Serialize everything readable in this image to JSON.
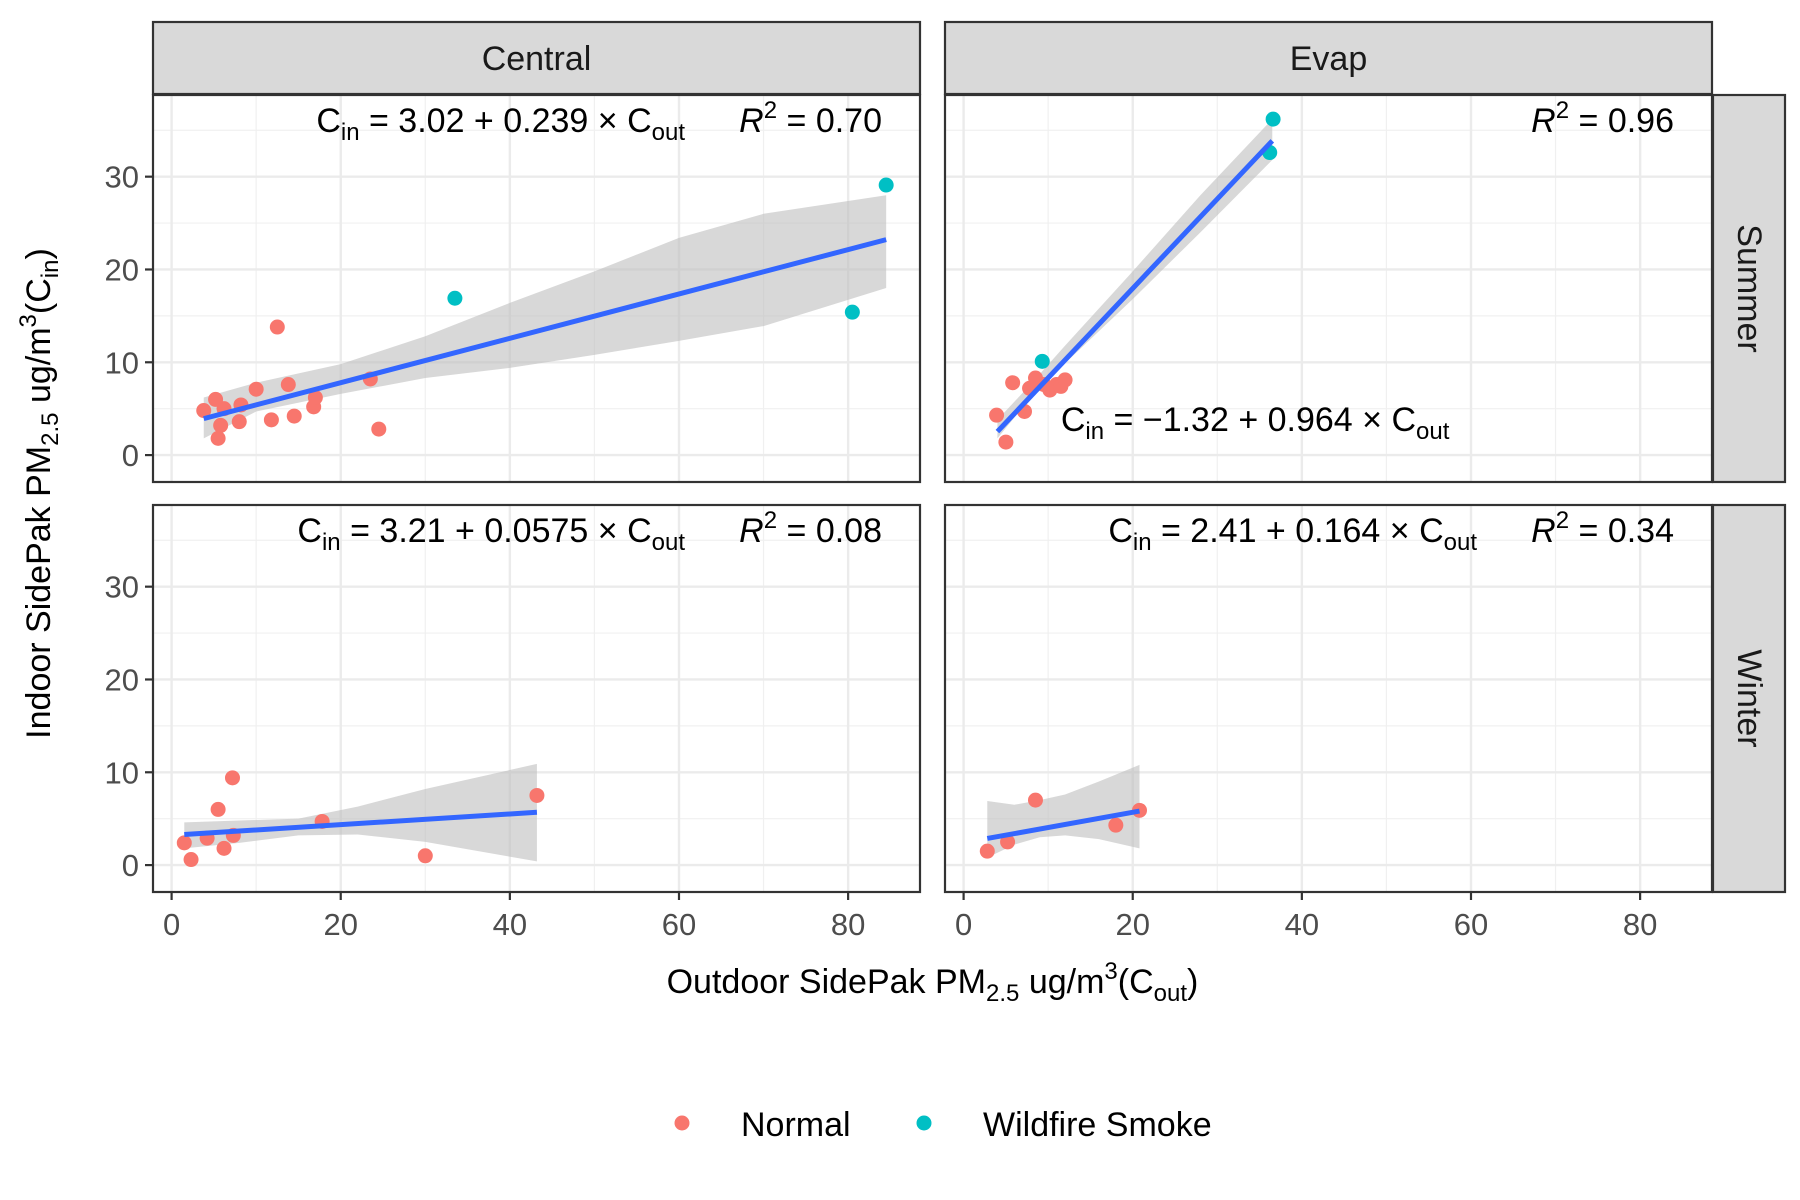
{
  "chart_data": {
    "type": "scatter",
    "x_title": {
      "prefix": "Outdoor SidePak PM",
      "sub": "2.5",
      "mid": " ug/m",
      "sup": "3",
      "open": "(C",
      "sub2": "out",
      "close": ")"
    },
    "y_title": {
      "prefix": "Indoor SidePak PM",
      "sub": "2.5",
      "mid": " ug/m",
      "sup": "3",
      "open": "(C",
      "sub2": "in",
      "close": ")"
    },
    "xlim": [
      -2.2,
      88.5
    ],
    "ylim": [
      -2.9,
      38.8
    ],
    "x_ticks": [
      0,
      20,
      40,
      60,
      80
    ],
    "y_ticks": [
      0,
      10,
      20,
      30
    ],
    "column_strips": [
      "Central",
      "Evap"
    ],
    "row_strips": [
      "Summer",
      "Winter"
    ],
    "grid": true,
    "legend": {
      "position": "bottom",
      "entries": [
        {
          "label": "Normal",
          "color": "#F8766D"
        },
        {
          "label": "Wildfire Smoke",
          "color": "#00BFC4"
        }
      ]
    },
    "fit_color": "#3366FF",
    "band_color": "#BEBEBE",
    "panels": [
      {
        "row": "Summer",
        "col": "Central",
        "fit": {
          "intercept": 3.02,
          "slope": 0.239,
          "x_range": [
            3.8,
            84.5
          ]
        },
        "band": [
          [
            3.8,
            1.8,
            6.2
          ],
          [
            10,
            4.7,
            7.8
          ],
          [
            20,
            6.6,
            9.8
          ],
          [
            30,
            8.3,
            12.8
          ],
          [
            40,
            9.4,
            16.4
          ],
          [
            50,
            10.8,
            19.8
          ],
          [
            60,
            12.3,
            23.4
          ],
          [
            70,
            13.9,
            26.0
          ],
          [
            84.5,
            18.0,
            28.0
          ]
        ],
        "equation": {
          "intercept": "3.02",
          "slope": "0.239",
          "r2": "0.70",
          "position": "top"
        },
        "points": [
          {
            "x": 3.8,
            "y": 4.8,
            "group": "Normal"
          },
          {
            "x": 5.2,
            "y": 6.0,
            "group": "Normal"
          },
          {
            "x": 5.5,
            "y": 1.8,
            "group": "Normal"
          },
          {
            "x": 5.8,
            "y": 3.2,
            "group": "Normal"
          },
          {
            "x": 6.2,
            "y": 5.0,
            "group": "Normal"
          },
          {
            "x": 8.0,
            "y": 3.6,
            "group": "Normal"
          },
          {
            "x": 8.2,
            "y": 5.4,
            "group": "Normal"
          },
          {
            "x": 10.0,
            "y": 7.1,
            "group": "Normal"
          },
          {
            "x": 11.8,
            "y": 3.8,
            "group": "Normal"
          },
          {
            "x": 12.5,
            "y": 13.8,
            "group": "Normal"
          },
          {
            "x": 13.8,
            "y": 7.6,
            "group": "Normal"
          },
          {
            "x": 14.5,
            "y": 4.2,
            "group": "Normal"
          },
          {
            "x": 16.8,
            "y": 5.2,
            "group": "Normal"
          },
          {
            "x": 17.0,
            "y": 6.2,
            "group": "Normal"
          },
          {
            "x": 23.5,
            "y": 8.2,
            "group": "Normal"
          },
          {
            "x": 24.5,
            "y": 2.8,
            "group": "Normal"
          },
          {
            "x": 33.5,
            "y": 16.9,
            "group": "Wildfire Smoke"
          },
          {
            "x": 80.5,
            "y": 15.4,
            "group": "Wildfire Smoke"
          },
          {
            "x": 84.5,
            "y": 29.1,
            "group": "Wildfire Smoke"
          }
        ]
      },
      {
        "row": "Summer",
        "col": "Evap",
        "fit": {
          "intercept": -1.32,
          "slope": 0.964,
          "x_range": [
            4.0,
            36.5
          ]
        },
        "band": [
          [
            4.0,
            1.8,
            3.8
          ],
          [
            8,
            6.3,
            7.7
          ],
          [
            12,
            9.9,
            11.8
          ],
          [
            20,
            16.8,
            19.8
          ],
          [
            28,
            24.0,
            28.0
          ],
          [
            36.5,
            31.8,
            36.2
          ]
        ],
        "equation": {
          "intercept": "−1.32",
          "slope": "0.964",
          "r2": "0.96",
          "position": "split"
        },
        "points": [
          {
            "x": 3.9,
            "y": 4.3,
            "group": "Normal"
          },
          {
            "x": 5.0,
            "y": 1.4,
            "group": "Normal"
          },
          {
            "x": 5.8,
            "y": 7.8,
            "group": "Normal"
          },
          {
            "x": 7.2,
            "y": 4.7,
            "group": "Normal"
          },
          {
            "x": 7.8,
            "y": 7.2,
            "group": "Normal"
          },
          {
            "x": 8.5,
            "y": 8.3,
            "group": "Normal"
          },
          {
            "x": 9.5,
            "y": 7.6,
            "group": "Normal"
          },
          {
            "x": 10.2,
            "y": 7.0,
            "group": "Normal"
          },
          {
            "x": 11.0,
            "y": 7.6,
            "group": "Normal"
          },
          {
            "x": 11.5,
            "y": 7.4,
            "group": "Normal"
          },
          {
            "x": 12.0,
            "y": 8.1,
            "group": "Normal"
          },
          {
            "x": 9.3,
            "y": 10.1,
            "group": "Wildfire Smoke"
          },
          {
            "x": 36.2,
            "y": 32.6,
            "group": "Wildfire Smoke"
          },
          {
            "x": 36.6,
            "y": 36.2,
            "group": "Wildfire Smoke"
          }
        ]
      },
      {
        "row": "Winter",
        "col": "Central",
        "fit": {
          "intercept": 3.21,
          "slope": 0.0575,
          "x_range": [
            1.5,
            43.2
          ]
        },
        "band": [
          [
            1.5,
            1.8,
            4.6
          ],
          [
            8,
            2.4,
            4.8
          ],
          [
            15,
            3.2,
            5.0
          ],
          [
            22,
            3.3,
            6.3
          ],
          [
            30,
            2.5,
            8.2
          ],
          [
            43.2,
            0.4,
            10.9
          ]
        ],
        "equation": {
          "intercept": "3.21",
          "slope": "0.0575",
          "r2": "0.08",
          "position": "top"
        },
        "points": [
          {
            "x": 1.5,
            "y": 2.4,
            "group": "Normal"
          },
          {
            "x": 2.3,
            "y": 0.6,
            "group": "Normal"
          },
          {
            "x": 4.2,
            "y": 2.9,
            "group": "Normal"
          },
          {
            "x": 5.5,
            "y": 6.0,
            "group": "Normal"
          },
          {
            "x": 6.2,
            "y": 1.8,
            "group": "Normal"
          },
          {
            "x": 7.2,
            "y": 9.4,
            "group": "Normal"
          },
          {
            "x": 7.3,
            "y": 3.2,
            "group": "Normal"
          },
          {
            "x": 17.8,
            "y": 4.7,
            "group": "Normal"
          },
          {
            "x": 30.0,
            "y": 1.0,
            "group": "Normal"
          },
          {
            "x": 43.2,
            "y": 7.5,
            "group": "Normal"
          }
        ]
      },
      {
        "row": "Winter",
        "col": "Evap",
        "fit": {
          "intercept": 2.41,
          "slope": 0.164,
          "x_range": [
            2.8,
            20.8
          ]
        },
        "band": [
          [
            2.8,
            0.8,
            6.9
          ],
          [
            6,
            2.2,
            6.5
          ],
          [
            9,
            3.0,
            7.0
          ],
          [
            12,
            3.2,
            7.6
          ],
          [
            16,
            2.8,
            9.0
          ],
          [
            20.8,
            1.8,
            10.8
          ]
        ],
        "equation": {
          "intercept": "2.41",
          "slope": "0.164",
          "r2": "0.34",
          "position": "top"
        },
        "points": [
          {
            "x": 2.8,
            "y": 1.5,
            "group": "Normal"
          },
          {
            "x": 5.2,
            "y": 2.5,
            "group": "Normal"
          },
          {
            "x": 8.5,
            "y": 7.0,
            "group": "Normal"
          },
          {
            "x": 18.0,
            "y": 4.3,
            "group": "Normal"
          },
          {
            "x": 20.8,
            "y": 5.9,
            "group": "Normal"
          }
        ]
      }
    ]
  }
}
